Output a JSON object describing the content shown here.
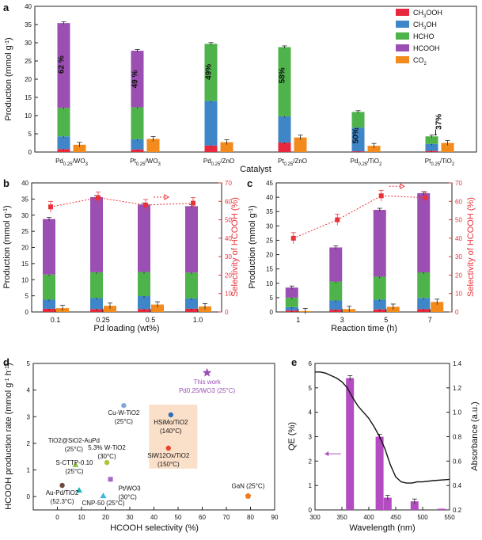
{
  "panel_labels": [
    "a",
    "b",
    "c",
    "d",
    "e"
  ],
  "colors": {
    "CH3OOH": "#e8283c",
    "CH3OH": "#3f86c8",
    "HCHO": "#4fb34c",
    "HCOOH": "#9b4fb3",
    "CO2": "#f28a1c",
    "sel": "#e8323a",
    "qe": "#b34cc0",
    "abs": "#111111",
    "box": "#fbe0c9"
  },
  "chart_data": [
    {
      "panel": "a",
      "type": "bar",
      "stacked": true,
      "categories": [
        "Pd0.25/WO3",
        "Pt0.25/WO3",
        "Pd0.25/ZnO",
        "Pt0.25/ZnO",
        "Pd0.25/TiO2",
        "Pt0.25/TiO2"
      ],
      "series": [
        {
          "name": "CH3OOH",
          "values": [
            0.8,
            0.7,
            1.8,
            2.6,
            0.2,
            0.3
          ]
        },
        {
          "name": "CH3OH",
          "values": [
            3.5,
            2.8,
            12.2,
            7.2,
            6.5,
            1.9
          ]
        },
        {
          "name": "HCHO",
          "values": [
            7.8,
            8.8,
            15.7,
            19.0,
            4.3,
            2.1
          ]
        },
        {
          "name": "HCOOH",
          "values": [
            23.3,
            15.5,
            0,
            0,
            0,
            0
          ]
        }
      ],
      "side_series": {
        "name": "CO2",
        "values": [
          2.0,
          3.6,
          2.7,
          4.0,
          1.7,
          2.5
        ]
      },
      "annotations": [
        "62 %",
        "49 %",
        "49%",
        "58%",
        "50%",
        "37%"
      ],
      "legend": [
        "CH3OOH",
        "CH3OH",
        "HCHO",
        "HCOOH",
        "CO2"
      ],
      "legend_parts": [
        {
          "base": "CH",
          "sub": "3",
          "rest": "OOH"
        },
        {
          "base": "CH",
          "sub": "3",
          "rest": "OH"
        },
        {
          "base": "HCHO",
          "sub": "",
          "rest": ""
        },
        {
          "base": "HCOOH",
          "sub": "",
          "rest": ""
        },
        {
          "base": "CO",
          "sub": "2",
          "rest": ""
        }
      ],
      "xlabel": "Catalyst",
      "ylabel": "Production (mmol g-1)",
      "ylim": [
        0,
        40
      ],
      "yticks": [
        0,
        5,
        10,
        15,
        20,
        25,
        30,
        35,
        40
      ]
    },
    {
      "panel": "b",
      "type": "bar",
      "stacked": true,
      "categories": [
        "0.1",
        "0.25",
        "0.5",
        "1.0"
      ],
      "series": [
        {
          "name": "CH3OOH",
          "values": [
            1.0,
            0.9,
            0.9,
            1.0
          ]
        },
        {
          "name": "CH3OH",
          "values": [
            2.8,
            3.4,
            4.0,
            3.2
          ]
        },
        {
          "name": "HCHO",
          "values": [
            7.8,
            8.0,
            7.5,
            8.0
          ]
        },
        {
          "name": "HCOOH",
          "values": [
            17.2,
            23.3,
            20.9,
            20.6
          ]
        }
      ],
      "side_series": {
        "name": "CO2",
        "values": [
          1.2,
          1.9,
          2.3,
          1.7
        ]
      },
      "selectivity": [
        57,
        62,
        58,
        59
      ],
      "xlabel": "Pd loading (wt%)",
      "ylabel": "Production (mmol g-1)",
      "y2label": "Selectivity of HCOOH (%)",
      "ylim": [
        0,
        40
      ],
      "y2lim": [
        0,
        70
      ],
      "yticks": [
        0,
        5,
        10,
        15,
        20,
        25,
        30,
        35,
        40
      ],
      "y2ticks": [
        0,
        10,
        20,
        30,
        40,
        50,
        60,
        70
      ]
    },
    {
      "panel": "c",
      "type": "bar",
      "stacked": true,
      "categories": [
        "1",
        "3",
        "5",
        "7"
      ],
      "series": [
        {
          "name": "CH3OOH",
          "values": [
            0.5,
            0.8,
            0.9,
            1.0
          ]
        },
        {
          "name": "CH3OH",
          "values": [
            1.2,
            3.2,
            3.4,
            3.9
          ]
        },
        {
          "name": "HCHO",
          "values": [
            3.3,
            6.6,
            8.0,
            8.9
          ]
        },
        {
          "name": "HCOOH",
          "values": [
            3.5,
            11.9,
            23.3,
            27.6
          ]
        }
      ],
      "side_series": {
        "name": "CO2",
        "values": [
          0.3,
          1.0,
          1.8,
          3.5
        ]
      },
      "selectivity": [
        40,
        50,
        63,
        62
      ],
      "xlabel": "Reaction time (h)",
      "ylabel": "Production (mmol g-1)",
      "y2label": "Selectivity of HCOOH (%)",
      "ylim": [
        0,
        45
      ],
      "y2lim": [
        0,
        70
      ],
      "yticks": [
        0,
        5,
        10,
        15,
        20,
        25,
        30,
        35,
        40,
        45
      ],
      "y2ticks": [
        0,
        10,
        20,
        30,
        40,
        50,
        60,
        70
      ]
    },
    {
      "panel": "d",
      "type": "scatter",
      "points": [
        {
          "label": "This work\nPd0.25/WO3 (25°C)",
          "x": 62.0,
          "y": 4.65,
          "color": "#9b4fb3",
          "shape": "star"
        },
        {
          "label": "Cu-W-TiO2\n(25°C)",
          "x": 27.5,
          "y": 3.42,
          "color": "#7fa8d8",
          "shape": "circle"
        },
        {
          "label": "HSiMo/TiO2\n(140°C)",
          "x": 47.0,
          "y": 3.07,
          "color": "#2e6fb5",
          "shape": "circle"
        },
        {
          "label": "SiW12Ox/TiO2\n(150°C)",
          "x": 46.0,
          "y": 1.82,
          "color": "#e8452a",
          "shape": "circle"
        },
        {
          "label": "TiO2@SiO2-AuPd\n(25°C)",
          "x": 7.5,
          "y": 1.2,
          "color": "#8ac54a",
          "shape": "triangle"
        },
        {
          "label": "5.3% W-TiO2\n(30°C)",
          "x": 20.5,
          "y": 1.28,
          "color": "#a8c43a",
          "shape": "circle"
        },
        {
          "label": "S-CTTP-0.10\n(25°C)",
          "x": 9.0,
          "y": 0.24,
          "color": "#1ab5b5",
          "shape": "triangle"
        },
        {
          "label": "Pt/WO3\n(30°C)",
          "x": 22.0,
          "y": 0.65,
          "color": "#a568c8",
          "shape": "square"
        },
        {
          "label": "Au-Pd/TiO2\n(52.3°C)",
          "x": 2.0,
          "y": 0.42,
          "color": "#6e4a3a",
          "shape": "circle"
        },
        {
          "label": "CNP-50 (25°C)",
          "x": 19.0,
          "y": 0.03,
          "color": "#3cb8d8",
          "shape": "triangle"
        },
        {
          "label": "GaN (25°C)",
          "x": 79.0,
          "y": 0.02,
          "color": "#f27a1c",
          "shape": "pentagon"
        }
      ],
      "xlabel": "HCOOH selectivity (%)",
      "ylabel": "HCOOH production rate (mmol g-1 h-1)",
      "xlim": [
        -10,
        90
      ],
      "ylim": [
        -0.5,
        5
      ],
      "xticks": [
        0,
        10,
        20,
        30,
        40,
        50,
        60,
        70,
        80,
        90
      ],
      "yticks": [
        0,
        1,
        2,
        3,
        4,
        5
      ]
    },
    {
      "panel": "e",
      "type": "bar",
      "bars": [
        {
          "x": 365,
          "qe": 5.4
        },
        {
          "x": 420,
          "qe": 3.0
        },
        {
          "x": 435,
          "qe": 0.5
        },
        {
          "x": 485,
          "qe": 0.35
        },
        {
          "x": 535,
          "qe": 0.02
        }
      ],
      "absorbance": {
        "x": [
          300,
          310,
          320,
          330,
          340,
          350,
          360,
          370,
          380,
          390,
          400,
          410,
          420,
          430,
          440,
          450,
          460,
          470,
          480,
          490,
          500,
          520,
          550
        ],
        "y": [
          1.33,
          1.33,
          1.32,
          1.3,
          1.28,
          1.25,
          1.2,
          1.12,
          1.05,
          1.0,
          0.95,
          0.88,
          0.8,
          0.7,
          0.57,
          0.47,
          0.43,
          0.42,
          0.42,
          0.43,
          0.43,
          0.44,
          0.45
        ]
      },
      "xlabel": "Wavelength (nm)",
      "ylabel": "QE (%)",
      "y2label": "Absorbance (a.u.)",
      "xlim": [
        300,
        550
      ],
      "ylim": [
        0,
        6
      ],
      "y2lim": [
        0.2,
        1.4
      ],
      "xticks": [
        300,
        350,
        400,
        450,
        500,
        550
      ],
      "yticks": [
        0,
        1,
        2,
        3,
        4,
        5,
        6
      ],
      "y2ticks": [
        0.2,
        0.4,
        0.6,
        0.8,
        1.0,
        1.2,
        1.4
      ]
    }
  ],
  "text": {
    "xlabel_a": "Catalyst",
    "ylabel_prod": "Production (mmol g",
    "ylabel_prod_sup": "-1",
    "ylabel_sel": "Selectivity of HCOOH (%)",
    "xlabel_b": "Pd loading (wt%)",
    "xlabel_c": "Reaction time (h)",
    "xlabel_d": "HCOOH selectivity (%)",
    "ylabel_d_main": "HCOOH production rate (mmol g",
    "ylabel_d_sup1": "-1",
    "ylabel_d_mid": " h",
    "ylabel_d_sup2": "-1",
    "xlabel_e": "Wavelength (nm)",
    "ylabel_e": "QE (%)",
    "y2label_e": "Absorbance (a.u.)"
  }
}
